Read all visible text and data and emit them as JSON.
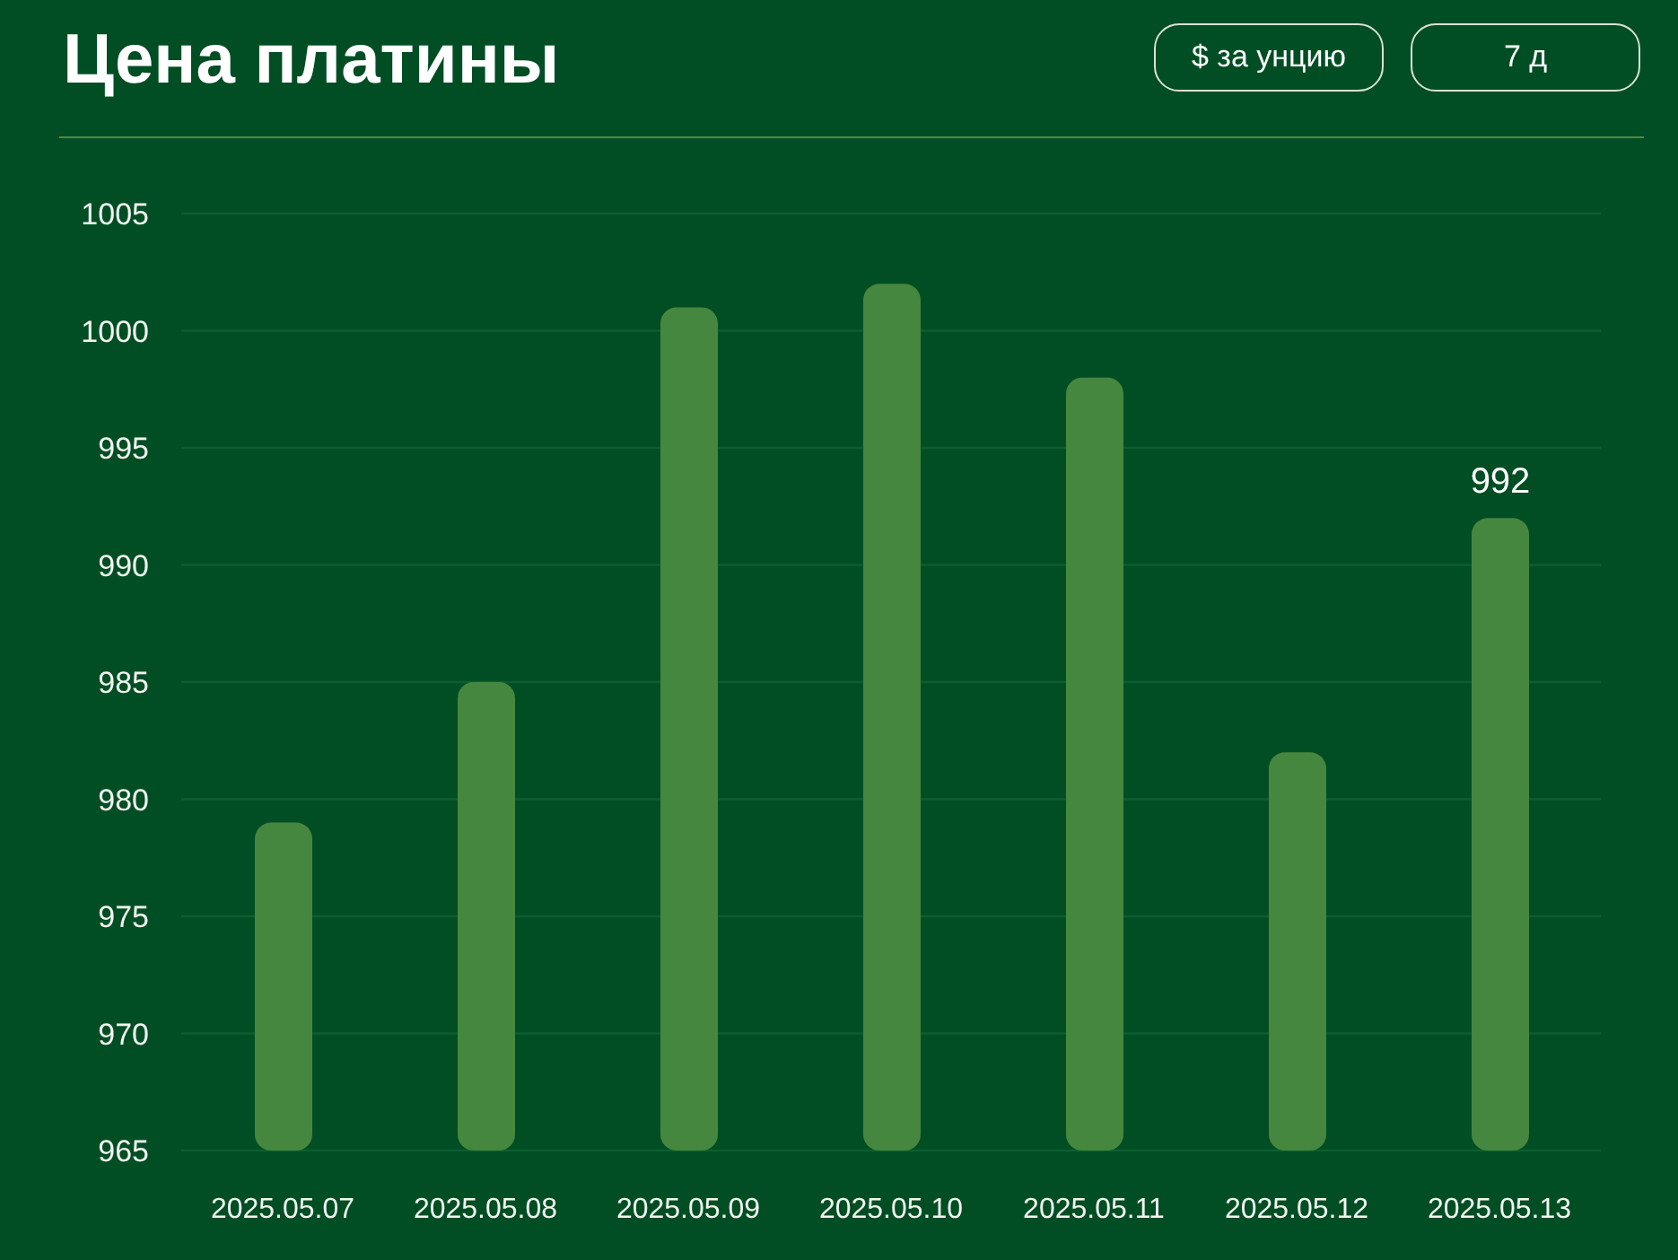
{
  "chart_data": {
    "type": "bar",
    "title": "Цена платины",
    "annotations": [
      "$ за унцию",
      "7 д"
    ],
    "categories": [
      "2025.05.07",
      "2025.05.08",
      "2025.05.09",
      "2025.05.10",
      "2025.05.11",
      "2025.05.12",
      "2025.05.13"
    ],
    "values": [
      979,
      985,
      1001,
      1002,
      998,
      982,
      992
    ],
    "color": "#46873f",
    "value_labels": [
      null,
      null,
      null,
      null,
      null,
      null,
      "992"
    ],
    "ylim": [
      965,
      1005
    ],
    "yticks": [
      965,
      970,
      975,
      980,
      985,
      990,
      995,
      1000,
      1005
    ],
    "grid": "y"
  }
}
